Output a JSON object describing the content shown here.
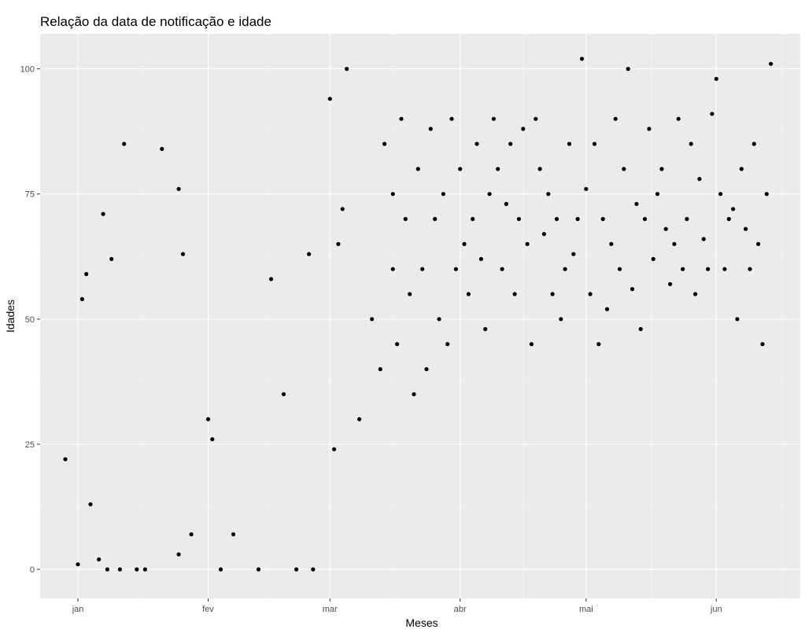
{
  "chart_data": {
    "type": "scatter",
    "title": "Relação da data de notificação e idade",
    "xlabel": "Meses",
    "ylabel": "Idades",
    "x_axis_type": "date",
    "xlim": [
      "2020-12-23",
      "2020-06-21"
    ],
    "x_ticks": [
      {
        "label": "jan",
        "value": "2020-01-01"
      },
      {
        "label": "fev",
        "value": "2020-02-01"
      },
      {
        "label": "mar",
        "value": "2020-03-01"
      },
      {
        "label": "abr",
        "value": "2020-04-01"
      },
      {
        "label": "mai",
        "value": "2020-05-01"
      },
      {
        "label": "jun",
        "value": "2020-06-01"
      }
    ],
    "ylim": [
      -5.8,
      107
    ],
    "y_ticks": [
      0,
      25,
      50,
      75,
      100
    ],
    "grid": true,
    "background": "#ebebeb",
    "point_color": "#000000",
    "series": [
      {
        "x": [
          "2019-12-29",
          "2020-01-01",
          "2020-01-02",
          "2020-01-03",
          "2020-01-04",
          "2020-01-06",
          "2020-01-07",
          "2020-01-08",
          "2020-01-09",
          "2020-01-11",
          "2020-01-12",
          "2020-01-15",
          "2020-01-17",
          "2020-01-21",
          "2020-01-25",
          "2020-01-25",
          "2020-01-26",
          "2020-01-28",
          "2020-02-01",
          "2020-02-02",
          "2020-02-04",
          "2020-02-07",
          "2020-02-13",
          "2020-02-16",
          "2020-02-19",
          "2020-02-22",
          "2020-02-25",
          "2020-02-26",
          "2020-03-01",
          "2020-03-02",
          "2020-03-03",
          "2020-03-04",
          "2020-03-05",
          "2020-03-08",
          "2020-03-11",
          "2020-03-13",
          "2020-03-14",
          "2020-03-16",
          "2020-03-16",
          "2020-03-17",
          "2020-03-18",
          "2020-03-19",
          "2020-03-20",
          "2020-03-21",
          "2020-03-22",
          "2020-03-23",
          "2020-03-24",
          "2020-03-25",
          "2020-03-26",
          "2020-03-27",
          "2020-03-28",
          "2020-03-29",
          "2020-03-30",
          "2020-03-31",
          "2020-04-01",
          "2020-04-02",
          "2020-04-03",
          "2020-04-04",
          "2020-04-05",
          "2020-04-06",
          "2020-04-07",
          "2020-04-08",
          "2020-04-09",
          "2020-04-10",
          "2020-04-11",
          "2020-04-12",
          "2020-04-13",
          "2020-04-14",
          "2020-04-15",
          "2020-04-16",
          "2020-04-17",
          "2020-04-18",
          "2020-04-19",
          "2020-04-20",
          "2020-04-21",
          "2020-04-22",
          "2020-04-23",
          "2020-04-24",
          "2020-04-25",
          "2020-04-26",
          "2020-04-27",
          "2020-04-28",
          "2020-04-29",
          "2020-04-30",
          "2020-05-01",
          "2020-05-02",
          "2020-05-03",
          "2020-05-04",
          "2020-05-05",
          "2020-05-06",
          "2020-05-07",
          "2020-05-08",
          "2020-05-09",
          "2020-05-10",
          "2020-05-11",
          "2020-05-12",
          "2020-05-13",
          "2020-05-14",
          "2020-05-15",
          "2020-05-16",
          "2020-05-17",
          "2020-05-18",
          "2020-05-19",
          "2020-05-20",
          "2020-05-21",
          "2020-05-22",
          "2020-05-23",
          "2020-05-24",
          "2020-05-25",
          "2020-05-26",
          "2020-05-27",
          "2020-05-28",
          "2020-05-29",
          "2020-05-30",
          "2020-05-31",
          "2020-06-01",
          "2020-06-02",
          "2020-06-03",
          "2020-06-04",
          "2020-06-05",
          "2020-06-06",
          "2020-06-07",
          "2020-06-08",
          "2020-06-09",
          "2020-06-10",
          "2020-06-11",
          "2020-06-12",
          "2020-06-13",
          "2020-06-14"
        ],
        "y": [
          22,
          1,
          54,
          59,
          13,
          2,
          71,
          0,
          62,
          0,
          85,
          0,
          0,
          84,
          3,
          76,
          63,
          7,
          30,
          26,
          0,
          7,
          0,
          58,
          35,
          0,
          63,
          0,
          94,
          24,
          65,
          72,
          100,
          30,
          50,
          40,
          85,
          60,
          75,
          45,
          90,
          70,
          55,
          35,
          80,
          60,
          40,
          88,
          70,
          50,
          75,
          45,
          90,
          60,
          80,
          65,
          55,
          70,
          85,
          62,
          48,
          75,
          90,
          80,
          60,
          73,
          85,
          55,
          70,
          88,
          65,
          45,
          90,
          80,
          67,
          75,
          55,
          70,
          50,
          60,
          85,
          63,
          70,
          102,
          76,
          55,
          85,
          45,
          70,
          52,
          65,
          90,
          60,
          80,
          100,
          56,
          73,
          48,
          70,
          88,
          62,
          75,
          80,
          68,
          57,
          65,
          90,
          60,
          70,
          85,
          55,
          78,
          66,
          60,
          91,
          98,
          75,
          60,
          70,
          72,
          50,
          80,
          68,
          60,
          85,
          65,
          45,
          75,
          101
        ]
      }
    ]
  }
}
